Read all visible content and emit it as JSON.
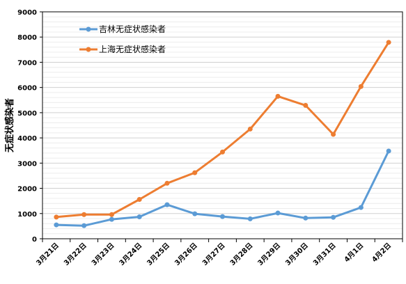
{
  "chart_data": {
    "type": "line",
    "title": "",
    "xlabel": "",
    "ylabel": "无症状感染者",
    "ylim": [
      0,
      9000
    ],
    "yticks": [
      0,
      1000,
      2000,
      3000,
      4000,
      5000,
      6000,
      7000,
      8000,
      9000
    ],
    "grid": true,
    "legend_position": "top-left",
    "categories": [
      "3月21日",
      "3月22日",
      "3月23日",
      "3月24日",
      "3月25日",
      "3月26日",
      "3月27日",
      "3月28日",
      "3月29日",
      "3月30日",
      "3月31日",
      "4月1日",
      "4月2日"
    ],
    "series": [
      {
        "name": "吉林无症状感染者",
        "color": "#5B9BD5",
        "values": [
          550,
          520,
          770,
          870,
          1350,
          990,
          880,
          790,
          1020,
          820,
          850,
          1240,
          3480
        ]
      },
      {
        "name": "上海无症状感染者",
        "color": "#ED7D31",
        "values": [
          860,
          960,
          960,
          1560,
          2200,
          2620,
          3440,
          4350,
          5650,
          5290,
          4140,
          6040,
          7790
        ]
      }
    ]
  }
}
